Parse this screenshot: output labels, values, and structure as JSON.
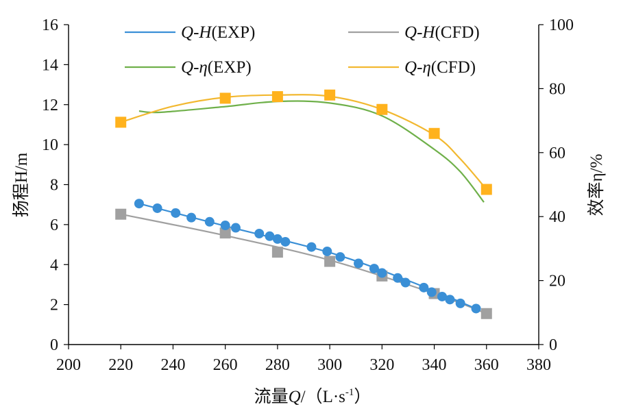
{
  "chart_data": {
    "type": "line",
    "x_axis": {
      "label_prefix": "流量",
      "label_var": "Q",
      "label_suffix": "/（L·s",
      "label_sup": "-1",
      "label_end": "）",
      "range": [
        200,
        380
      ],
      "ticks": [
        200,
        220,
        240,
        260,
        280,
        300,
        320,
        340,
        360,
        380
      ]
    },
    "y_left": {
      "label": "扬程H/m",
      "range": [
        0,
        16
      ],
      "ticks": [
        0,
        2,
        4,
        6,
        8,
        10,
        12,
        14,
        16
      ]
    },
    "y_right": {
      "label": "效率η/%",
      "range": [
        0,
        100
      ],
      "ticks": [
        0,
        20,
        40,
        60,
        80,
        100
      ]
    },
    "legend_position": "top",
    "grid": false,
    "series": [
      {
        "id": "qh-exp",
        "legend_var1": "Q",
        "legend_var2": "H",
        "legend_suffix": "(EXP)",
        "axis": "left",
        "color": "#3a8fd6",
        "marker": "circle",
        "points": [
          [
            227,
            7.05
          ],
          [
            234,
            6.82
          ],
          [
            241,
            6.58
          ],
          [
            247,
            6.35
          ],
          [
            254,
            6.14
          ],
          [
            260,
            5.96
          ],
          [
            264,
            5.84
          ],
          [
            273,
            5.55
          ],
          [
            277,
            5.42
          ],
          [
            280,
            5.28
          ],
          [
            283,
            5.14
          ],
          [
            293,
            4.88
          ],
          [
            299,
            4.66
          ],
          [
            304,
            4.38
          ],
          [
            311,
            4.06
          ],
          [
            317,
            3.8
          ],
          [
            320,
            3.58
          ],
          [
            326,
            3.33
          ],
          [
            329,
            3.1
          ],
          [
            336,
            2.85
          ],
          [
            339,
            2.62
          ],
          [
            343,
            2.4
          ],
          [
            346,
            2.25
          ],
          [
            350,
            2.06
          ],
          [
            356,
            1.8
          ]
        ],
        "curve": [
          [
            227,
            7.05
          ],
          [
            260,
            5.93
          ],
          [
            300,
            4.6
          ],
          [
            330,
            3.2
          ],
          [
            356,
            1.8
          ]
        ]
      },
      {
        "id": "qh-cfd",
        "legend_var1": "Q",
        "legend_var2": "H",
        "legend_suffix": "(CFD)",
        "axis": "left",
        "color": "#a0a0a0",
        "marker": "square",
        "points": [
          [
            220,
            6.52
          ],
          [
            260,
            5.58
          ],
          [
            280,
            4.62
          ],
          [
            300,
            4.16
          ],
          [
            320,
            3.43
          ],
          [
            340,
            2.55
          ],
          [
            360,
            1.55
          ]
        ],
        "curve": [
          [
            220,
            6.52
          ],
          [
            260,
            5.45
          ],
          [
            300,
            4.22
          ],
          [
            340,
            2.55
          ],
          [
            360,
            1.55
          ]
        ]
      },
      {
        "id": "qeta-exp",
        "legend_var1": "Q",
        "legend_var2": "η",
        "legend_suffix": "(EXP)",
        "axis": "right",
        "color": "#6fb04a",
        "marker": "none",
        "points": [],
        "curve": [
          [
            227,
            73.0
          ],
          [
            235,
            72.6
          ],
          [
            260,
            74.4
          ],
          [
            280,
            76.0
          ],
          [
            300,
            75.5
          ],
          [
            320,
            71.5
          ],
          [
            340,
            61.0
          ],
          [
            350,
            54.0
          ],
          [
            359,
            44.5
          ]
        ]
      },
      {
        "id": "qeta-cfd",
        "legend_var1": "Q",
        "legend_var2": "η",
        "legend_suffix": "(CFD)",
        "axis": "right",
        "color": "#f2b830",
        "marker": "square-orange",
        "points": [
          [
            220,
            69.5
          ],
          [
            260,
            77.0
          ],
          [
            280,
            77.5
          ],
          [
            300,
            78.0
          ],
          [
            320,
            73.5
          ],
          [
            340,
            66.0
          ],
          [
            360,
            48.5
          ]
        ],
        "curve": [
          [
            220,
            69.5
          ],
          [
            240,
            74.5
          ],
          [
            260,
            77.3
          ],
          [
            280,
            78.0
          ],
          [
            300,
            77.6
          ],
          [
            320,
            73.5
          ],
          [
            340,
            65.5
          ],
          [
            350,
            58.0
          ],
          [
            360,
            48.5
          ]
        ]
      }
    ]
  }
}
